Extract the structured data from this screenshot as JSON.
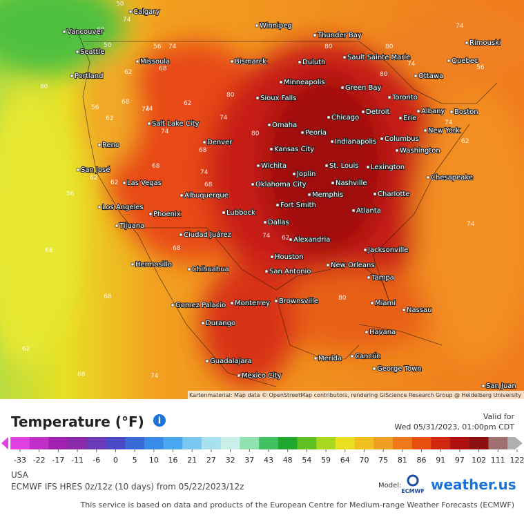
{
  "header": {
    "title": "Temperature (°F)",
    "valid_label": "Valid for",
    "valid_time": "Wed 05/31/2023, 01:00pm CDT"
  },
  "scale": {
    "ticks": [
      -33,
      -22,
      -17,
      -11,
      -6,
      0,
      5,
      10,
      16,
      21,
      27,
      32,
      37,
      43,
      48,
      54,
      59,
      64,
      70,
      75,
      81,
      86,
      91,
      97,
      102,
      111,
      122
    ],
    "colors": [
      "#e040e0",
      "#c030c8",
      "#a020b0",
      "#8a2aa8",
      "#6a3ab8",
      "#4a4ac8",
      "#3a6ad8",
      "#3a8ae8",
      "#4aa8f0",
      "#7ac8f0",
      "#a8e0f0",
      "#c8f0e8",
      "#90e0b0",
      "#40c060",
      "#20a830",
      "#60c020",
      "#a8d820",
      "#e8e020",
      "#f0c020",
      "#f0a020",
      "#f07818",
      "#e85010",
      "#d02810",
      "#b01010",
      "#901010",
      "#a07070",
      "#b0b0b0"
    ]
  },
  "map": {
    "cities": [
      "Calgary",
      "Vancouver",
      "Seattle",
      "Winnipeg",
      "Thunder Bay",
      "Sault Sainte Marie",
      "Rimouski",
      "Quebec",
      "Missoula",
      "Bismarck",
      "Duluth",
      "Ottawa",
      "Portland",
      "Minneapolis",
      "Green Bay",
      "Toronto",
      "Sioux Falls",
      "Albany",
      "Boston",
      "Detroit",
      "Chicago",
      "Erie",
      "Salt Lake City",
      "Omaha",
      "Peoria",
      "New York",
      "Columbus",
      "Reno",
      "Denver",
      "Indianapolis",
      "Kansas City",
      "Washington",
      "San José",
      "Wichita",
      "Joplin",
      "St. Louis",
      "Lexington",
      "Chesapeake",
      "Las Vegas",
      "Nashville",
      "Oklahoma City",
      "Albuquerque",
      "Memphis",
      "Charlotte",
      "Fort Smith",
      "Los Angeles",
      "Lubbock",
      "Atlanta",
      "Phoenix",
      "Dallas",
      "Tijuana",
      "Ciudad Juárez",
      "Alexandria",
      "Jacksonville",
      "Houston",
      "Hermosillo",
      "New Orleans",
      "Chihuahua",
      "San Antonio",
      "Tampa",
      "Brownsville",
      "Miami",
      "Monterrey",
      "Gomez Palacio",
      "Nassau",
      "Durango",
      "Havana",
      "Guadalajara",
      "Merida",
      "Cancún",
      "George Town",
      "Mexico City",
      "San Juan"
    ],
    "contour_labels": [
      50,
      74,
      68,
      50,
      56,
      74,
      62,
      68,
      74,
      62,
      80,
      74,
      56,
      68,
      74,
      62,
      80,
      74,
      56,
      62,
      68,
      74,
      80,
      68,
      74,
      62,
      68,
      80,
      74,
      68,
      62,
      68,
      56,
      62,
      74,
      80,
      74,
      80,
      68,
      62,
      68,
      74,
      80,
      74
    ],
    "attribution": "Kartenmaterial: Map data © OpenStreetMap contributors, rendering GIScience Research Group @ Heidelberg University"
  },
  "footer": {
    "region": "USA",
    "model_run": "ECMWF IFS HRES 0z/12z (10 days) from 05/22/2023/12z",
    "model_label": "Model:",
    "ecmwf": "ECMWF",
    "brand": "weather.us",
    "disclaimer": "This service is based on data and products of the European Centre for Medium-range Weather Forecasts (ECMWF)"
  }
}
